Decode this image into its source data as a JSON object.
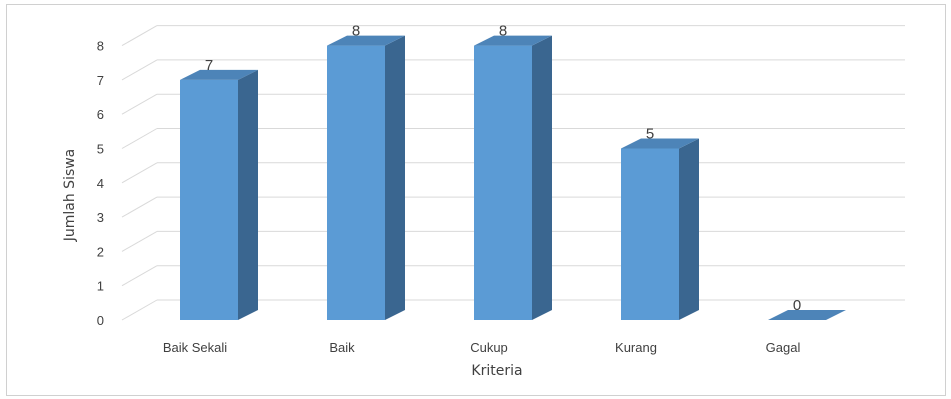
{
  "chart_data": {
    "type": "bar",
    "style": "3d-column",
    "categories": [
      "Baik Sekali",
      "Baik",
      "Cukup",
      "Kurang",
      "Gagal"
    ],
    "values": [
      7,
      8,
      8,
      5,
      0
    ],
    "xlabel": "Kriteria",
    "ylabel": "Jumlah Siswa",
    "ylim": [
      0,
      8
    ],
    "yticks": [
      0,
      1,
      2,
      3,
      4,
      5,
      6,
      7,
      8
    ],
    "grid": true,
    "legend": "none",
    "data_labels": true,
    "colors": {
      "bar_front": "#5b9bd5",
      "bar_side": "#3a6690",
      "bar_top": "#4d84b8",
      "grid": "#d9d9d9",
      "text": "#404040"
    }
  }
}
